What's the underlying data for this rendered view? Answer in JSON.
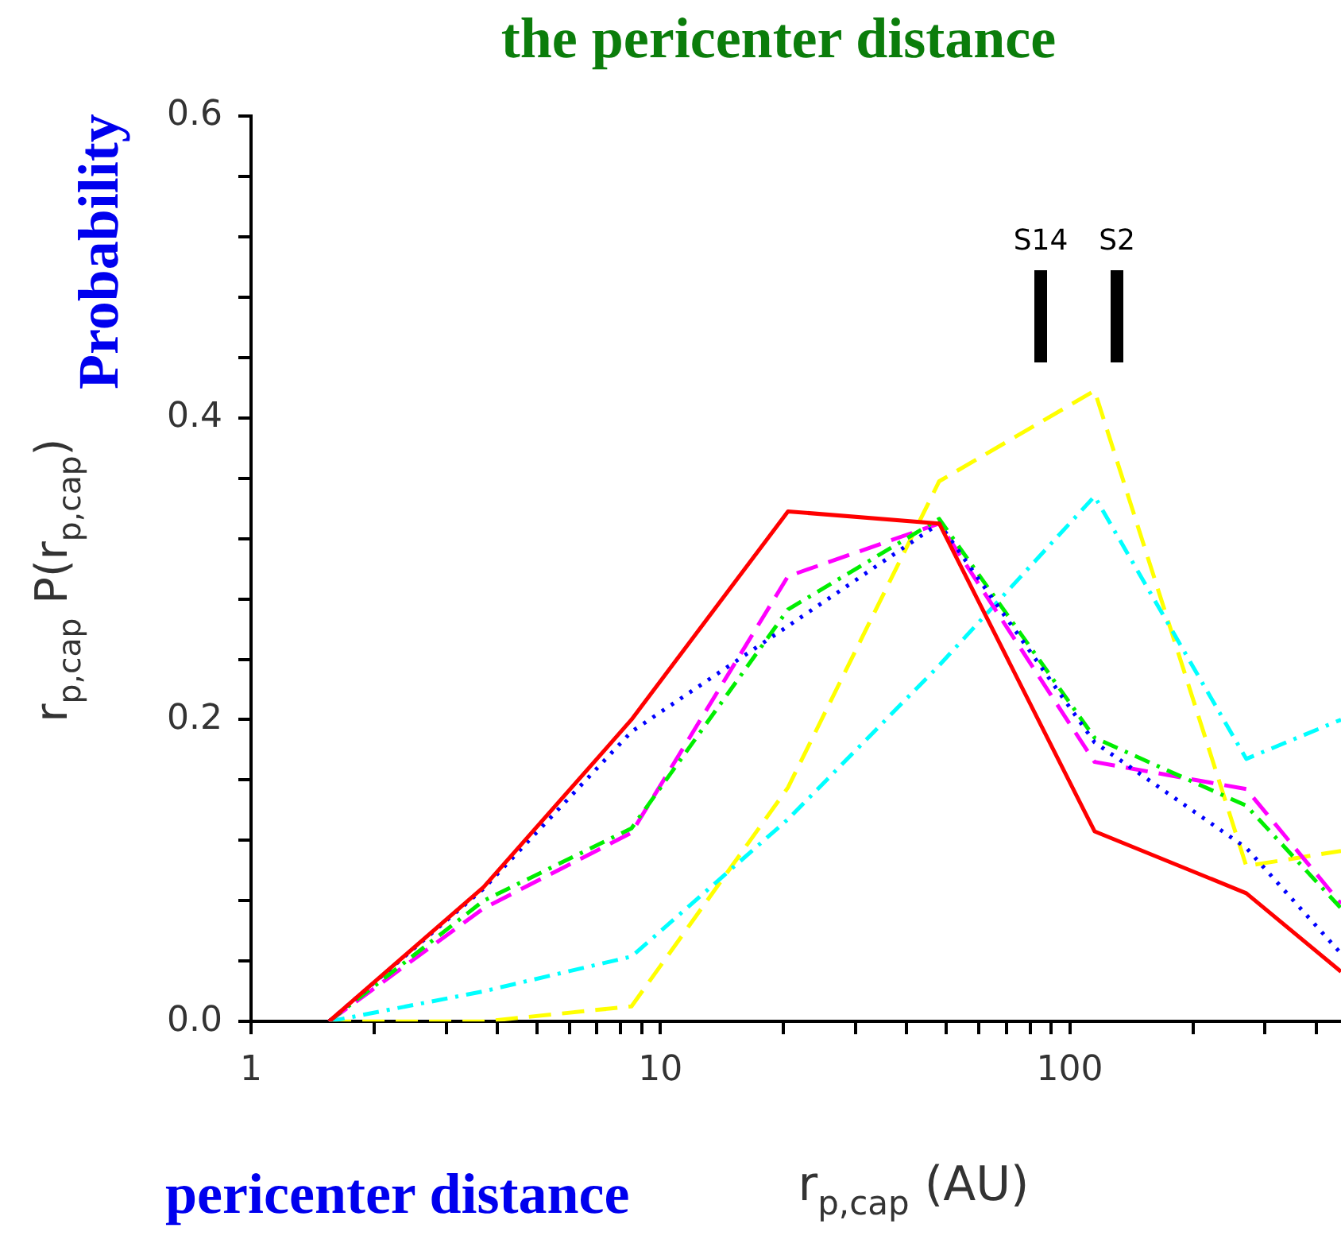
{
  "chart_data": {
    "type": "line",
    "title": "the pericenter distance",
    "xlabel": "r$_{p,cap}$ (AU)",
    "ylabel": "r$_{p,cap}$ P(r$_{p,cap}$)",
    "annotations": [
      "Probability",
      "pericenter distance",
      "S14",
      "S2"
    ],
    "log": "x",
    "x": [
      1.55,
      3.7,
      8.5,
      20.5,
      48,
      115,
      270,
      460
    ],
    "xlim": [
      1,
      460
    ],
    "xticks": [
      1,
      {
        "value": 2,
        "label": null
      },
      {
        "value": 3,
        "label": null
      },
      {
        "value": 4,
        "label": null
      },
      {
        "value": 5,
        "label": null
      },
      {
        "value": 6,
        "label": null
      },
      {
        "value": 7,
        "label": null
      },
      {
        "value": 8,
        "label": null
      },
      {
        "value": 9,
        "label": null
      },
      10,
      {
        "value": 20,
        "label": null
      },
      {
        "value": 30,
        "label": null
      },
      {
        "value": 40,
        "label": null
      },
      {
        "value": 50,
        "label": null
      },
      {
        "value": 60,
        "label": null
      },
      {
        "value": 70,
        "label": null
      },
      {
        "value": 80,
        "label": null
      },
      {
        "value": 90,
        "label": null
      },
      100,
      {
        "value": 200,
        "label": null
      },
      {
        "value": 300,
        "label": null
      },
      {
        "value": 400,
        "label": null
      }
    ],
    "ylim": [
      0,
      0.6
    ],
    "yticks": [
      {
        "value": 0,
        "label": "0.0"
      },
      {
        "value": 0.04,
        "label": null
      },
      {
        "value": 0.08,
        "label": null
      },
      {
        "value": 0.12,
        "label": null
      },
      {
        "value": 0.16,
        "label": null
      },
      {
        "value": 0.2,
        "label": "0.2"
      },
      {
        "value": 0.24,
        "label": null
      },
      {
        "value": 0.28,
        "label": null
      },
      {
        "value": 0.32,
        "label": null
      },
      {
        "value": 0.36,
        "label": null
      },
      {
        "value": 0.4,
        "label": "0.4"
      },
      {
        "value": 0.44,
        "label": null
      },
      {
        "value": 0.48,
        "label": null
      },
      {
        "value": 0.52,
        "label": null
      },
      {
        "value": 0.56,
        "label": null
      },
      {
        "value": 0.6,
        "label": "0.6"
      }
    ],
    "grid": false,
    "legend": false,
    "marker": "none",
    "series": [
      {
        "color": "#ff0000",
        "line_style": "solid",
        "values": [
          0,
          0.089,
          0.2,
          0.338,
          0.33,
          0.126,
          0.085,
          0.033
        ]
      },
      {
        "color": "#0000ff",
        "line_style": "dotted",
        "values": [
          0,
          0.088,
          0.192,
          0.262,
          0.33,
          0.185,
          0.115,
          0.045
        ]
      },
      {
        "color": "#00ee00",
        "line_style": "dashdot",
        "values": [
          0,
          0.08,
          0.128,
          0.273,
          0.333,
          0.188,
          0.143,
          0.075
        ]
      },
      {
        "color": "#ff00ff",
        "line_style": "dashed",
        "values": [
          0,
          0.075,
          0.125,
          0.295,
          0.33,
          0.172,
          0.154,
          0.078
        ]
      },
      {
        "color": "#00ffff",
        "line_style": "dashdot",
        "values": [
          0,
          0.02,
          0.043,
          0.134,
          0.236,
          0.348,
          0.174,
          0.2
        ]
      },
      {
        "color": "#ffff00",
        "line_style": "dashed",
        "values": [
          0,
          0,
          0.01,
          0.155,
          0.358,
          0.418,
          0.103,
          0.113
        ]
      }
    ]
  }
}
